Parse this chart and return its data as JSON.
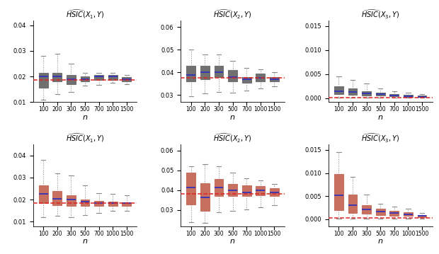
{
  "sample_sizes": [
    100,
    200,
    300,
    500,
    700,
    1000,
    1500
  ],
  "n_positions": [
    1,
    2,
    3,
    4,
    5,
    6,
    7
  ],
  "box_width": 0.65,
  "row1_titles": [
    "$\\widehat{HSIC}(X_1,Y)$",
    "$\\widehat{HSIC}(X_2,Y)$",
    "$\\widehat{HSIC}(X_3,Y)$"
  ],
  "row2_titles": [
    "$\\widehat{HSIC}(X_1,Y)$",
    "$\\widehat{HSIC}(X_2,Y)$",
    "$\\widehat{HSIC}(X_3,Y)$"
  ],
  "row1_col1": {
    "true_val": 0.0185,
    "ylim": [
      0.01,
      0.042
    ],
    "yticks": [
      0.01,
      0.02,
      0.03,
      0.04
    ],
    "medians": [
      0.02,
      0.02,
      0.019,
      0.019,
      0.02,
      0.02,
      0.019
    ],
    "q1": [
      0.0155,
      0.018,
      0.017,
      0.018,
      0.0185,
      0.0185,
      0.0182
    ],
    "q3": [
      0.0215,
      0.0215,
      0.0205,
      0.02,
      0.0205,
      0.0205,
      0.0198
    ],
    "whislo": [
      0.011,
      0.013,
      0.014,
      0.0165,
      0.0168,
      0.0175,
      0.017
    ],
    "whishi": [
      0.028,
      0.029,
      0.025,
      0.0215,
      0.0215,
      0.0215,
      0.0205
    ]
  },
  "row1_col2": {
    "true_val": 0.0375,
    "ylim": [
      0.027,
      0.063
    ],
    "yticks": [
      0.03,
      0.04,
      0.05,
      0.06
    ],
    "medians": [
      0.039,
      0.04,
      0.04,
      0.038,
      0.037,
      0.0375,
      0.037
    ],
    "q1": [
      0.036,
      0.037,
      0.038,
      0.036,
      0.0355,
      0.036,
      0.036
    ],
    "q3": [
      0.043,
      0.043,
      0.043,
      0.041,
      0.038,
      0.0395,
      0.0378
    ],
    "whislo": [
      0.0295,
      0.0308,
      0.0315,
      0.031,
      0.032,
      0.033,
      0.034
    ],
    "whishi": [
      0.05,
      0.048,
      0.048,
      0.045,
      0.042,
      0.0415,
      0.04
    ]
  },
  "row1_col3": {
    "true_val": 0.0001,
    "ylim": [
      -0.0008,
      0.0162
    ],
    "yticks": [
      0.0,
      0.005,
      0.01,
      0.015
    ],
    "medians": [
      0.0015,
      0.0013,
      0.001,
      0.0008,
      0.0006,
      0.0004,
      0.0003
    ],
    "q1": [
      0.0008,
      0.0007,
      0.0006,
      0.0005,
      0.0004,
      0.0003,
      0.0002
    ],
    "q3": [
      0.0025,
      0.002,
      0.0015,
      0.0011,
      0.0009,
      0.00065,
      0.0005
    ],
    "whislo": [
      5e-05,
      5e-05,
      5e-05,
      5e-05,
      5e-05,
      5e-05,
      5e-05
    ],
    "whishi": [
      0.0045,
      0.0038,
      0.003,
      0.002,
      0.0014,
      0.00115,
      0.0009
    ]
  },
  "row2_col1": {
    "true_val": 0.0185,
    "ylim": [
      0.008,
      0.045
    ],
    "yticks": [
      0.01,
      0.02,
      0.03,
      0.04
    ],
    "medians": [
      0.0225,
      0.0205,
      0.02,
      0.019,
      0.0185,
      0.0185,
      0.0183
    ],
    "q1": [
      0.0185,
      0.0175,
      0.017,
      0.017,
      0.017,
      0.017,
      0.017
    ],
    "q3": [
      0.0265,
      0.024,
      0.022,
      0.02,
      0.0193,
      0.019,
      0.0188
    ],
    "whislo": [
      0.012,
      0.0125,
      0.012,
      0.013,
      0.014,
      0.0148,
      0.015
    ],
    "whishi": [
      0.038,
      0.032,
      0.031,
      0.0265,
      0.023,
      0.0225,
      0.022
    ]
  },
  "row2_col2": {
    "true_val": 0.038,
    "ylim": [
      0.022,
      0.063
    ],
    "yticks": [
      0.03,
      0.04,
      0.05,
      0.06
    ],
    "medians": [
      0.0415,
      0.0365,
      0.0415,
      0.04,
      0.039,
      0.04,
      0.039
    ],
    "q1": [
      0.033,
      0.0295,
      0.037,
      0.037,
      0.0372,
      0.0375,
      0.0372
    ],
    "q3": [
      0.049,
      0.0435,
      0.0455,
      0.043,
      0.0425,
      0.042,
      0.041
    ],
    "whislo": [
      0.024,
      0.0235,
      0.029,
      0.0295,
      0.0305,
      0.0315,
      0.0325
    ],
    "whishi": [
      0.052,
      0.053,
      0.052,
      0.049,
      0.046,
      0.045,
      0.043
    ]
  },
  "row2_col3": {
    "true_val": 0.0002,
    "ylim": [
      -0.0015,
      0.0162
    ],
    "yticks": [
      0.0,
      0.005,
      0.01,
      0.015
    ],
    "medians": [
      0.0051,
      0.0031,
      0.00215,
      0.0016,
      0.0013,
      0.0011,
      0.00065
    ],
    "q1": [
      0.002,
      0.0013,
      0.0012,
      0.0009,
      0.0008,
      0.0007,
      0.0004
    ],
    "q3": [
      0.0098,
      0.0053,
      0.0031,
      0.0022,
      0.00175,
      0.0015,
      0.00095
    ],
    "whislo": [
      5e-05,
      5e-05,
      5e-05,
      5e-05,
      5e-05,
      5e-05,
      5e-05
    ],
    "whishi": [
      0.0145,
      0.0091,
      0.0053,
      0.0034,
      0.0027,
      0.0022,
      0.0014
    ]
  },
  "row1_box_color": "#909090",
  "row2_box_color": "#E8927C",
  "row1_box_edge": "#707070",
  "row2_box_edge": "#C87060",
  "median_color": "#3333BB",
  "true_val_color": "#DD2222",
  "whisker_color": "#888888",
  "cap_color": "#888888"
}
